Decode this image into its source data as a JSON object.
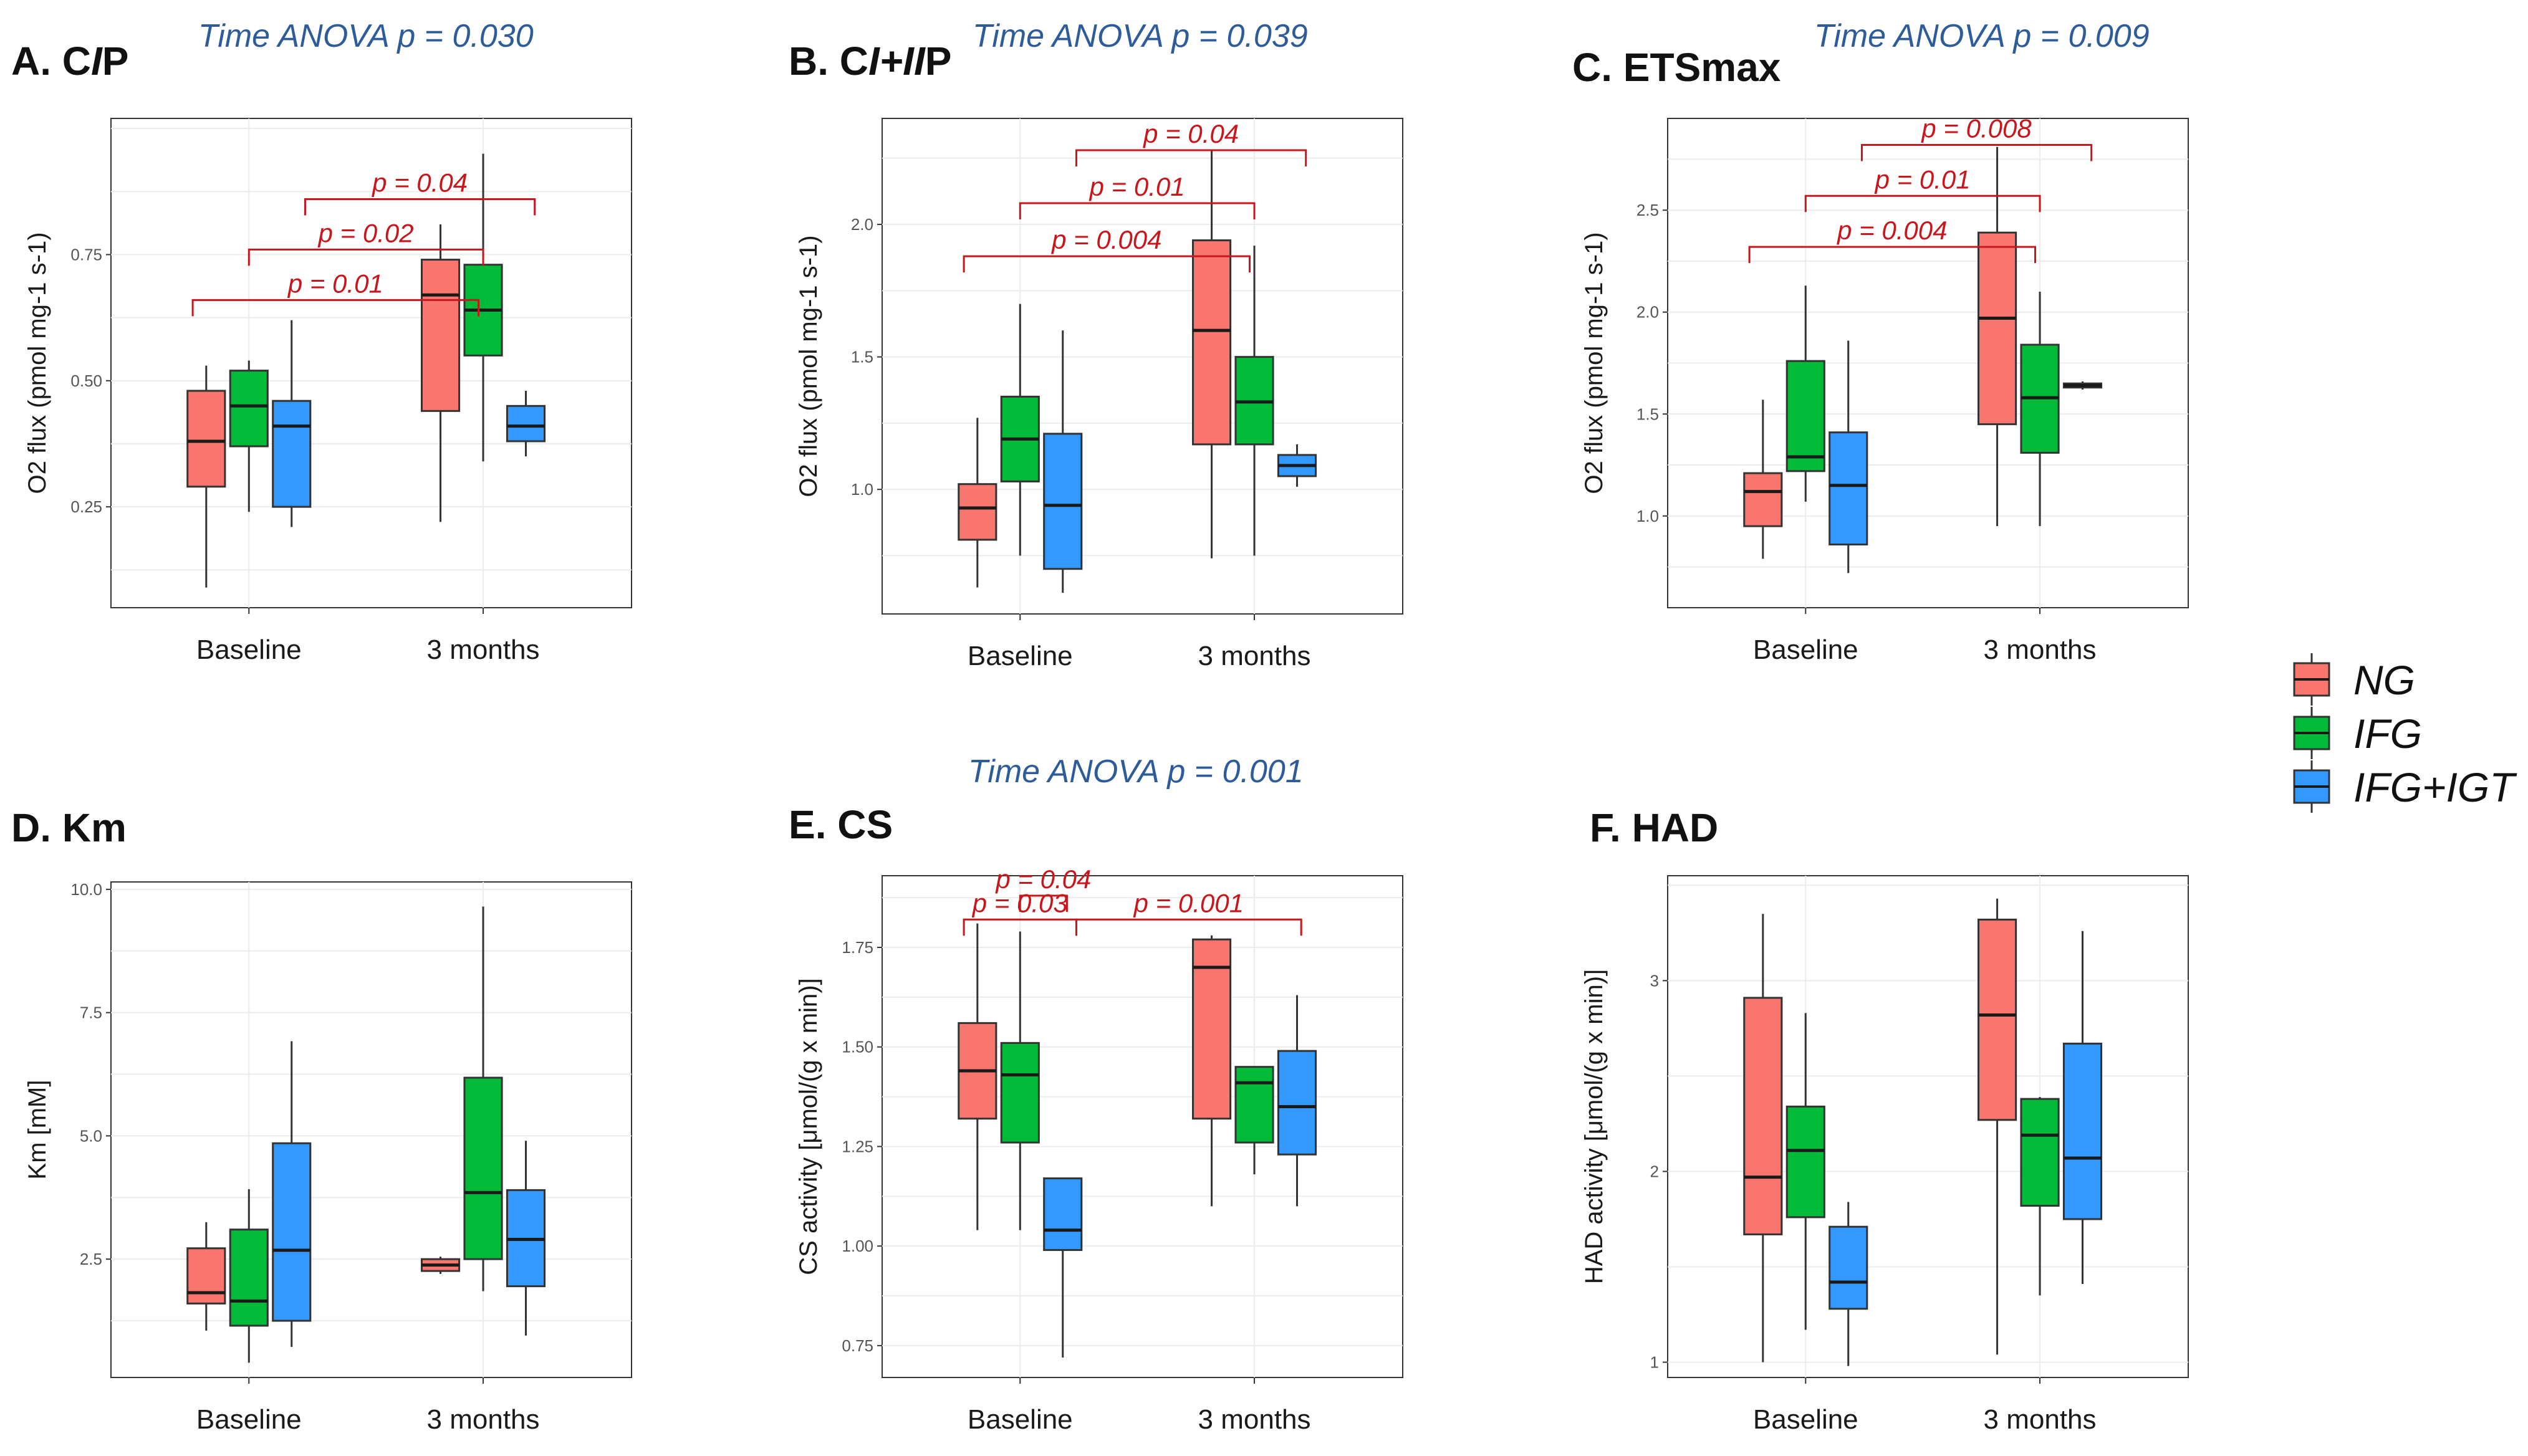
{
  "chart_data": [
    {
      "panel": "A",
      "title": "A. CIP",
      "title_parts": [
        "A. C",
        "I",
        "P"
      ],
      "type": "box",
      "ylabel": "O2 flux (pmol mg-1 s-1)",
      "ylim": [
        0.05,
        1.02
      ],
      "yticks": [
        0.25,
        0.5,
        0.75
      ],
      "ytick_labels": [
        "0.25",
        "0.50",
        "0.75"
      ],
      "anova": "Time ANOVA p = 0.030",
      "brackets": [
        {
          "x1": 0.76,
          "x2": 1.98,
          "y": 0.66,
          "label": "p = 0.01"
        },
        {
          "x1": 1.0,
          "x2": 2.0,
          "y": 0.76,
          "label": "p = 0.02"
        },
        {
          "x1": 1.24,
          "x2": 2.22,
          "y": 0.86,
          "label": "p = 0.04"
        }
      ],
      "groups": [
        {
          "x": 1,
          "series": 0,
          "min": 0.09,
          "q1": 0.29,
          "median": 0.38,
          "q3": 0.48,
          "max": 0.53
        },
        {
          "x": 1,
          "series": 1,
          "min": 0.24,
          "q1": 0.37,
          "median": 0.45,
          "q3": 0.52,
          "max": 0.54
        },
        {
          "x": 1,
          "series": 2,
          "min": 0.21,
          "q1": 0.25,
          "median": 0.41,
          "q3": 0.46,
          "max": 0.62
        },
        {
          "x": 2,
          "series": 0,
          "min": 0.22,
          "q1": 0.44,
          "median": 0.67,
          "q3": 0.74,
          "max": 0.81
        },
        {
          "x": 2,
          "series": 1,
          "min": 0.34,
          "q1": 0.55,
          "median": 0.64,
          "q3": 0.73,
          "max": 0.95
        },
        {
          "x": 2,
          "series": 2,
          "min": 0.35,
          "q1": 0.38,
          "median": 0.41,
          "q3": 0.45,
          "max": 0.48
        }
      ]
    },
    {
      "panel": "B",
      "title": "B. CI+IIP",
      "title_parts": [
        "B. C",
        "I+II",
        "P"
      ],
      "type": "box",
      "ylabel": "O2 flux (pmol mg-1 s-1)",
      "ylim": [
        0.53,
        2.4
      ],
      "yticks": [
        1.0,
        1.5,
        2.0
      ],
      "ytick_labels": [
        "1.0",
        "1.5",
        "2.0"
      ],
      "anova": "Time ANOVA p = 0.039",
      "brackets": [
        {
          "x1": 0.76,
          "x2": 1.98,
          "y": 1.88,
          "label": "p = 0.004"
        },
        {
          "x1": 1.0,
          "x2": 2.0,
          "y": 2.08,
          "label": "p = 0.01"
        },
        {
          "x1": 1.24,
          "x2": 2.22,
          "y": 2.28,
          "label": "p = 0.04"
        }
      ],
      "groups": [
        {
          "x": 1,
          "series": 0,
          "min": 0.63,
          "q1": 0.81,
          "median": 0.93,
          "q3": 1.02,
          "max": 1.27
        },
        {
          "x": 1,
          "series": 1,
          "min": 0.75,
          "q1": 1.03,
          "median": 1.19,
          "q3": 1.35,
          "max": 1.7
        },
        {
          "x": 1,
          "series": 2,
          "min": 0.61,
          "q1": 0.7,
          "median": 0.94,
          "q3": 1.21,
          "max": 1.6
        },
        {
          "x": 2,
          "series": 0,
          "min": 0.74,
          "q1": 1.17,
          "median": 1.6,
          "q3": 1.94,
          "max": 2.28
        },
        {
          "x": 2,
          "series": 1,
          "min": 0.75,
          "q1": 1.17,
          "median": 1.33,
          "q3": 1.5,
          "max": 1.92
        },
        {
          "x": 2,
          "series": 2,
          "min": 1.01,
          "q1": 1.05,
          "median": 1.09,
          "q3": 1.13,
          "max": 1.17
        }
      ]
    },
    {
      "panel": "C",
      "title": "C. ETSmax",
      "title_parts": [
        "C. ETSmax",
        "",
        ""
      ],
      "type": "box",
      "ylabel": "O2 flux (pmol mg-1 s-1)",
      "ylim": [
        0.55,
        2.95
      ],
      "yticks": [
        1.0,
        1.5,
        2.0,
        2.5
      ],
      "ytick_labels": [
        "1.0",
        "1.5",
        "2.0",
        "2.5"
      ],
      "anova": "Time ANOVA p = 0.009",
      "brackets": [
        {
          "x1": 0.76,
          "x2": 1.98,
          "y": 2.32,
          "label": "p = 0.004"
        },
        {
          "x1": 1.0,
          "x2": 2.0,
          "y": 2.57,
          "label": "p = 0.01"
        },
        {
          "x1": 1.24,
          "x2": 2.22,
          "y": 2.82,
          "label": "p = 0.008"
        }
      ],
      "groups": [
        {
          "x": 1,
          "series": 0,
          "min": 0.79,
          "q1": 0.95,
          "median": 1.12,
          "q3": 1.21,
          "max": 1.57
        },
        {
          "x": 1,
          "series": 1,
          "min": 1.07,
          "q1": 1.22,
          "median": 1.29,
          "q3": 1.76,
          "max": 2.13
        },
        {
          "x": 1,
          "series": 2,
          "min": 0.72,
          "q1": 0.86,
          "median": 1.15,
          "q3": 1.41,
          "max": 1.86
        },
        {
          "x": 2,
          "series": 0,
          "min": 0.95,
          "q1": 1.45,
          "median": 1.97,
          "q3": 2.39,
          "max": 2.81
        },
        {
          "x": 2,
          "series": 1,
          "min": 0.95,
          "q1": 1.31,
          "median": 1.58,
          "q3": 1.84,
          "max": 2.1
        },
        {
          "x": 2,
          "series": 2,
          "min": 1.62,
          "q1": 1.63,
          "median": 1.64,
          "q3": 1.65,
          "max": 1.66
        }
      ]
    },
    {
      "panel": "D",
      "title": "D. Km",
      "title_parts": [
        "D. Km",
        "",
        ""
      ],
      "type": "box",
      "ylabel": "Km  [mM]",
      "ylim": [
        0.1,
        10.15
      ],
      "yticks": [
        2.5,
        5.0,
        7.5,
        10.0
      ],
      "ytick_labels": [
        "2.5",
        "5.0",
        "7.5",
        "10.0"
      ],
      "anova": "",
      "brackets": [],
      "groups": [
        {
          "x": 1,
          "series": 0,
          "min": 1.05,
          "q1": 1.6,
          "median": 1.82,
          "q3": 2.72,
          "max": 3.25
        },
        {
          "x": 1,
          "series": 1,
          "min": 0.4,
          "q1": 1.15,
          "median": 1.65,
          "q3": 3.1,
          "max": 3.92
        },
        {
          "x": 1,
          "series": 2,
          "min": 0.72,
          "q1": 1.25,
          "median": 2.68,
          "q3": 4.85,
          "max": 6.92
        },
        {
          "x": 2,
          "series": 0,
          "min": 2.2,
          "q1": 2.26,
          "median": 2.38,
          "q3": 2.5,
          "max": 2.55
        },
        {
          "x": 2,
          "series": 1,
          "min": 1.85,
          "q1": 2.5,
          "median": 3.85,
          "q3": 6.18,
          "max": 9.65
        },
        {
          "x": 2,
          "series": 2,
          "min": 0.95,
          "q1": 1.95,
          "median": 2.9,
          "q3": 3.9,
          "max": 4.9
        }
      ]
    },
    {
      "panel": "E",
      "title": "E. CS",
      "title_parts": [
        "E. CS",
        "",
        ""
      ],
      "type": "box",
      "ylabel": "CS activity [μmol/(g x min)]",
      "ylim": [
        0.67,
        1.93
      ],
      "yticks": [
        0.75,
        1.0,
        1.25,
        1.5,
        1.75
      ],
      "ytick_labels": [
        "0.75",
        "1.00",
        "1.25",
        "1.50",
        "1.75"
      ],
      "anova": "Time ANOVA p = 0.001",
      "brackets": [
        {
          "x1": 0.76,
          "x2": 1.24,
          "y": 1.82,
          "label": "p = 0.03"
        },
        {
          "x1": 1.0,
          "x2": 1.2,
          "y": 1.88,
          "label": "p = 0.04"
        },
        {
          "x1": 1.24,
          "x2": 2.2,
          "y": 1.82,
          "label": "p = 0.001"
        }
      ],
      "groups": [
        {
          "x": 1,
          "series": 0,
          "min": 1.04,
          "q1": 1.32,
          "median": 1.44,
          "q3": 1.56,
          "max": 1.81
        },
        {
          "x": 1,
          "series": 1,
          "min": 1.04,
          "q1": 1.26,
          "median": 1.43,
          "q3": 1.51,
          "max": 1.79
        },
        {
          "x": 1,
          "series": 2,
          "min": 0.72,
          "q1": 0.99,
          "median": 1.04,
          "q3": 1.17,
          "max": 1.17
        },
        {
          "x": 2,
          "series": 0,
          "min": 1.1,
          "q1": 1.32,
          "median": 1.7,
          "q3": 1.77,
          "max": 1.78
        },
        {
          "x": 2,
          "series": 1,
          "min": 1.18,
          "q1": 1.26,
          "median": 1.41,
          "q3": 1.45,
          "max": 1.45
        },
        {
          "x": 2,
          "series": 2,
          "min": 1.1,
          "q1": 1.23,
          "median": 1.35,
          "q3": 1.49,
          "max": 1.63
        }
      ]
    },
    {
      "panel": "F",
      "title": "F. HAD",
      "title_parts": [
        "F. HAD",
        "",
        ""
      ],
      "type": "box",
      "ylabel": "HAD activity [μmol/(g x min)]",
      "ylim": [
        0.92,
        3.55
      ],
      "yticks": [
        1,
        2,
        3
      ],
      "ytick_labels": [
        "1",
        "2",
        "3"
      ],
      "anova": "",
      "brackets": [],
      "groups": [
        {
          "x": 1,
          "series": 0,
          "min": 1.0,
          "q1": 1.67,
          "median": 1.97,
          "q3": 2.91,
          "max": 3.35
        },
        {
          "x": 1,
          "series": 1,
          "min": 1.17,
          "q1": 1.76,
          "median": 2.11,
          "q3": 2.34,
          "max": 2.83
        },
        {
          "x": 1,
          "series": 2,
          "min": 0.98,
          "q1": 1.28,
          "median": 1.42,
          "q3": 1.71,
          "max": 1.84
        },
        {
          "x": 2,
          "series": 0,
          "min": 1.04,
          "q1": 2.27,
          "median": 2.82,
          "q3": 3.32,
          "max": 3.43
        },
        {
          "x": 2,
          "series": 1,
          "min": 1.35,
          "q1": 1.82,
          "median": 2.19,
          "q3": 2.38,
          "max": 2.39
        },
        {
          "x": 2,
          "series": 2,
          "min": 1.41,
          "q1": 1.75,
          "median": 2.07,
          "q3": 2.67,
          "max": 3.26
        }
      ]
    }
  ],
  "x_categories": [
    "Baseline",
    "3 months"
  ],
  "legend": {
    "position": "right",
    "items": [
      {
        "name": "NG",
        "color": "#f8766d"
      },
      {
        "name": "IFG",
        "color": "#00ba38"
      },
      {
        "name": "IFG+IGT",
        "color": "#3399ff"
      }
    ]
  },
  "colors": {
    "series_fill": [
      "#f8766d",
      "#00ba38",
      "#3399ff"
    ],
    "significance": "#c8161d",
    "anova": "#2e5c9a"
  }
}
